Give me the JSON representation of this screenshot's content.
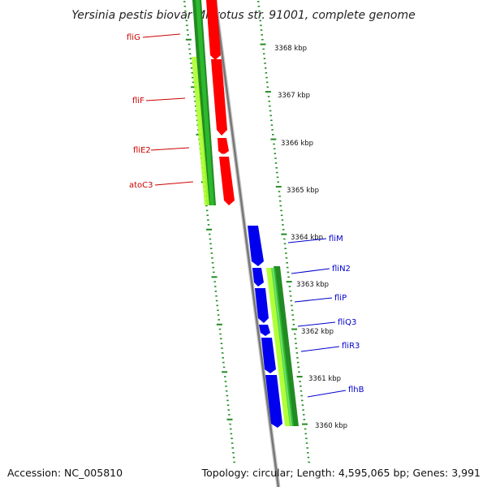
{
  "title": "Yersinia pestis biovar Microtus str. 91001, complete genome",
  "accession": "Accession: NC_005810",
  "summary": "Topology: circular; Length: 4,595,065 bp; Genes: 3,991",
  "colors": {
    "left_labels": "#cc0000",
    "right_labels": "#0000cc",
    "tick_marks": "#228b22",
    "backbone": "#888888",
    "forward_genes": "#ff0000",
    "reverse_genes": "#0000ee",
    "gc_dark": "#228b22",
    "gc_light": "#adff2f"
  },
  "kbp_labels": [
    "3368 kbp",
    "3367 kbp",
    "3366 kbp",
    "3365 kbp",
    "3364 kbp",
    "3363 kbp",
    "3362 kbp",
    "3361 kbp",
    "3360 kbp"
  ],
  "left_genes": [
    "fliG",
    "fliF",
    "fliE2",
    "atoC3"
  ],
  "right_genes": [
    "fliM",
    "fliN2",
    "fliP",
    "fliQ3",
    "fliR3",
    "flhB"
  ]
}
